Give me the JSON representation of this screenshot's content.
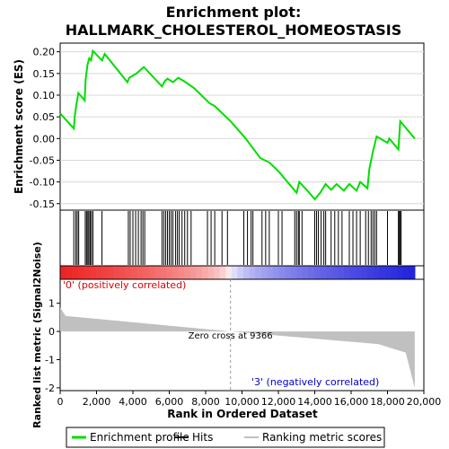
{
  "chart_data": {
    "type": "line",
    "title": "Enrichment plot:",
    "subtitle": "HALLMARK_CHOLESTEROL_HOMEOSTASIS",
    "es_panel": {
      "ylabel": "Enrichment score (ES)",
      "ylim": [
        -0.165,
        0.22
      ],
      "yticks": [
        0.2,
        0.15,
        0.1,
        0.05,
        0.0,
        -0.05,
        -0.1,
        -0.15
      ],
      "ytick_labels": [
        "0.20",
        "0.15",
        "0.10",
        "0.05",
        "0.00",
        "-0.05",
        "-0.10",
        "-0.15"
      ],
      "series": [
        {
          "name": "Enrichment profile",
          "color": "#00dd00",
          "points": [
            [
              0,
              0.058
            ],
            [
              750,
              0.023
            ],
            [
              800,
              0.05
            ],
            [
              900,
              0.08
            ],
            [
              1000,
              0.105
            ],
            [
              1350,
              0.088
            ],
            [
              1400,
              0.135
            ],
            [
              1500,
              0.17
            ],
            [
              1600,
              0.185
            ],
            [
              1700,
              0.18
            ],
            [
              1800,
              0.202
            ],
            [
              2300,
              0.18
            ],
            [
              2450,
              0.195
            ],
            [
              3700,
              0.13
            ],
            [
              3800,
              0.14
            ],
            [
              4000,
              0.145
            ],
            [
              4200,
              0.15
            ],
            [
              4600,
              0.165
            ],
            [
              5600,
              0.12
            ],
            [
              5750,
              0.132
            ],
            [
              5900,
              0.138
            ],
            [
              6200,
              0.13
            ],
            [
              6500,
              0.14
            ],
            [
              6900,
              0.13
            ],
            [
              7400,
              0.115
            ],
            [
              8200,
              0.082
            ],
            [
              8500,
              0.075
            ],
            [
              9366,
              0.04
            ],
            [
              10200,
              0.0
            ],
            [
              11000,
              -0.045
            ],
            [
              11500,
              -0.055
            ],
            [
              12000,
              -0.075
            ],
            [
              12500,
              -0.1
            ],
            [
              13000,
              -0.125
            ],
            [
              13150,
              -0.1
            ],
            [
              13700,
              -0.125
            ],
            [
              14000,
              -0.14
            ],
            [
              14300,
              -0.125
            ],
            [
              14600,
              -0.105
            ],
            [
              14900,
              -0.118
            ],
            [
              15200,
              -0.105
            ],
            [
              15600,
              -0.12
            ],
            [
              15900,
              -0.105
            ],
            [
              16300,
              -0.12
            ],
            [
              16500,
              -0.1
            ],
            [
              16900,
              -0.115
            ],
            [
              17000,
              -0.07
            ],
            [
              17200,
              -0.03
            ],
            [
              17400,
              0.005
            ],
            [
              18000,
              -0.01
            ],
            [
              18100,
              0.0
            ],
            [
              18600,
              -0.025
            ],
            [
              18700,
              0.04
            ],
            [
              19500,
              0.0
            ]
          ]
        }
      ]
    },
    "hits_panel": {
      "color": "#000000",
      "positions": [
        750,
        860,
        940,
        1020,
        1380,
        1450,
        1520,
        1580,
        1650,
        1720,
        1800,
        2300,
        3750,
        3850,
        4000,
        4150,
        4300,
        4450,
        4550,
        4650,
        5600,
        5700,
        5800,
        5900,
        6000,
        6100,
        6200,
        6350,
        6450,
        6550,
        6700,
        6850,
        7000,
        7200,
        8100,
        8300,
        8500,
        8900,
        9200,
        10100,
        10300,
        10500,
        10600,
        11100,
        11300,
        11500,
        12000,
        12200,
        12900,
        13000,
        13100,
        13150,
        13300,
        14000,
        14100,
        14200,
        14350,
        14500,
        14600,
        14900,
        15100,
        15300,
        15500,
        15900,
        16100,
        16300,
        16500,
        16800,
        16950,
        17100,
        17200,
        17300,
        17400,
        18000,
        18600,
        18650,
        18700,
        18750
      ]
    },
    "gradient_bar": {
      "positive_color": "#ee2222",
      "negative_color": "#2222dd"
    },
    "metric_panel": {
      "ylabel": "Ranked list metric (Signal2Noise)",
      "ylim": [
        -2.1,
        1.85
      ],
      "yticks": [
        1,
        0,
        -1,
        -2
      ],
      "ytick_labels": [
        "1",
        "0",
        "-1",
        "-2"
      ],
      "fill_color": "#c0c0c0",
      "zero_cross": 9366,
      "zero_cross_label": "Zero cross at 9366",
      "positive_label": "'0' (positively correlated)",
      "negative_label": "'3' (negatively correlated)",
      "positive_label_color": "#dd0000",
      "negative_label_color": "#0000cc"
    },
    "x": {
      "xlabel": "Rank in Ordered Dataset",
      "xlim": [
        0,
        20000
      ],
      "xticks": [
        0,
        2000,
        4000,
        6000,
        8000,
        10000,
        12000,
        14000,
        16000,
        18000,
        20000
      ],
      "xtick_labels": [
        "0",
        "2,000",
        "4,000",
        "6,000",
        "8,000",
        "10,000",
        "12,000",
        "14,000",
        "16,000",
        "18,000",
        "20,000"
      ],
      "n_genes": 19500
    },
    "legend": {
      "position": "bottom",
      "entries": [
        {
          "name": "Enrichment profile",
          "color": "#00dd00",
          "kind": "line"
        },
        {
          "name": "Hits",
          "color": "#000000",
          "kind": "line"
        },
        {
          "name": "Ranking metric scores",
          "color": "#c0c0c0",
          "kind": "line"
        }
      ]
    }
  }
}
